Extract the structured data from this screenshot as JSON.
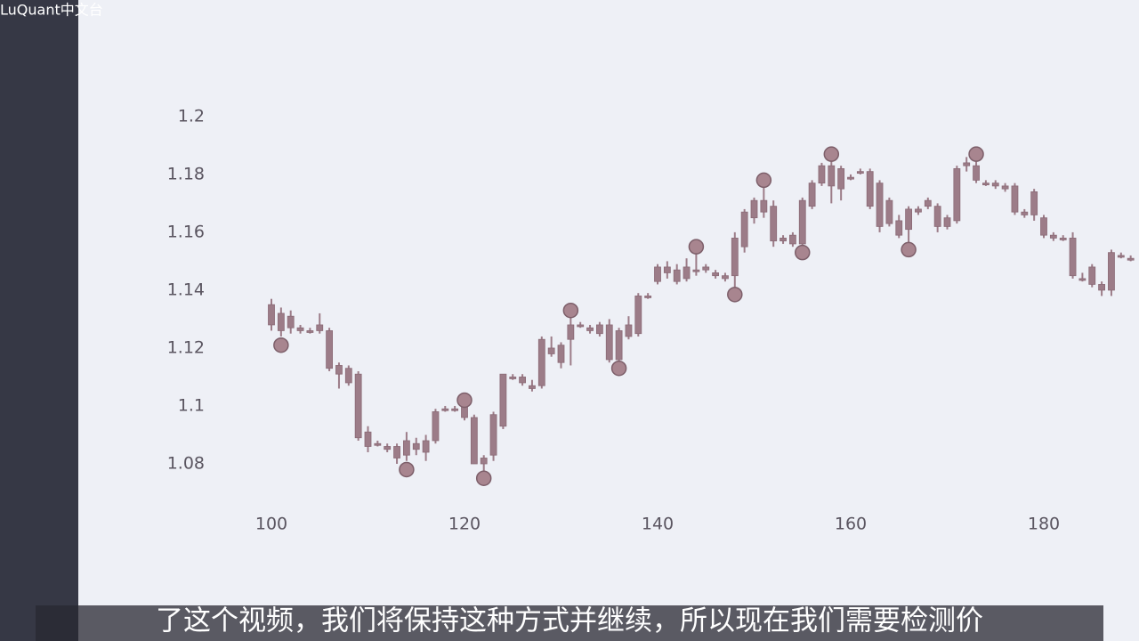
{
  "watermark": "LuQuant中文台",
  "subtitle": "了这个视频，我们将保持这种方式并继续，所以现在我们需要检测价",
  "chart_data": {
    "type": "candlestick",
    "color": "#9c7c88",
    "x": [
      100,
      101,
      102,
      103,
      104,
      105,
      106,
      107,
      108,
      109,
      110,
      111,
      112,
      113,
      114,
      115,
      116,
      117,
      118,
      119,
      120,
      121,
      122,
      123,
      124,
      125,
      126,
      127,
      128,
      129,
      130,
      131,
      132,
      133,
      134,
      135,
      136,
      137,
      138,
      139,
      140,
      141,
      142,
      143,
      144,
      145,
      146,
      147,
      148,
      149,
      150,
      151,
      152,
      153,
      154,
      155,
      156,
      157,
      158,
      159,
      160,
      161,
      162,
      163,
      164,
      165,
      166,
      167,
      168,
      169,
      170,
      171,
      172,
      173,
      174,
      175,
      176,
      177,
      178,
      179,
      180,
      181,
      182,
      183,
      184,
      185,
      186,
      187,
      188,
      189
    ],
    "open": [
      1.128,
      1.132,
      1.131,
      1.126,
      1.126,
      1.128,
      1.126,
      1.114,
      1.113,
      1.111,
      1.091,
      1.087,
      1.086,
      1.086,
      1.083,
      1.085,
      1.084,
      1.088,
      1.099,
      1.099,
      1.1,
      1.096,
      1.08,
      1.083,
      1.093,
      1.11,
      1.11,
      1.107,
      1.107,
      1.12,
      1.115,
      1.128,
      1.128,
      1.127,
      1.125,
      1.128,
      1.116,
      1.124,
      1.125,
      1.138,
      1.143,
      1.146,
      1.143,
      1.144,
      1.147,
      1.147,
      1.146,
      1.145,
      1.145,
      1.155,
      1.165,
      1.171,
      1.169,
      1.158,
      1.159,
      1.156,
      1.169,
      1.177,
      1.183,
      1.182,
      1.179,
      1.181,
      1.181,
      1.177,
      1.171,
      1.164,
      1.168,
      1.168,
      1.169,
      1.169,
      1.162,
      1.164,
      1.184,
      1.183,
      1.177,
      1.177,
      1.176,
      1.176,
      1.167,
      1.174,
      1.165,
      1.158,
      1.158,
      1.158,
      1.144,
      1.148,
      1.142,
      1.14,
      1.152,
      1.151
    ],
    "high": [
      1.137,
      1.134,
      1.133,
      1.128,
      1.127,
      1.132,
      1.127,
      1.115,
      1.114,
      1.112,
      1.093,
      1.088,
      1.087,
      1.087,
      1.091,
      1.089,
      1.09,
      1.099,
      1.1,
      1.1,
      1.102,
      1.097,
      1.083,
      1.098,
      1.111,
      1.111,
      1.111,
      1.109,
      1.124,
      1.124,
      1.122,
      1.133,
      1.129,
      1.128,
      1.129,
      1.13,
      1.127,
      1.131,
      1.139,
      1.139,
      1.149,
      1.15,
      1.149,
      1.151,
      1.155,
      1.149,
      1.147,
      1.146,
      1.16,
      1.168,
      1.172,
      1.178,
      1.171,
      1.159,
      1.16,
      1.172,
      1.178,
      1.184,
      1.187,
      1.183,
      1.18,
      1.182,
      1.182,
      1.178,
      1.172,
      1.166,
      1.169,
      1.169,
      1.172,
      1.17,
      1.166,
      1.183,
      1.186,
      1.187,
      1.178,
      1.178,
      1.177,
      1.177,
      1.168,
      1.175,
      1.166,
      1.16,
      1.159,
      1.16,
      1.146,
      1.149,
      1.143,
      1.154,
      1.153,
      1.152
    ],
    "low": [
      1.126,
      1.124,
      1.125,
      1.125,
      1.125,
      1.125,
      1.112,
      1.106,
      1.107,
      1.088,
      1.084,
      1.086,
      1.084,
      1.08,
      1.081,
      1.083,
      1.081,
      1.087,
      1.098,
      1.098,
      1.095,
      1.08,
      1.075,
      1.081,
      1.092,
      1.109,
      1.107,
      1.105,
      1.106,
      1.117,
      1.113,
      1.114,
      1.127,
      1.125,
      1.124,
      1.115,
      1.113,
      1.123,
      1.124,
      1.137,
      1.142,
      1.144,
      1.142,
      1.143,
      1.145,
      1.146,
      1.144,
      1.143,
      1.139,
      1.153,
      1.163,
      1.165,
      1.155,
      1.156,
      1.155,
      1.153,
      1.168,
      1.176,
      1.17,
      1.171,
      1.178,
      1.18,
      1.168,
      1.16,
      1.162,
      1.158,
      1.154,
      1.166,
      1.168,
      1.16,
      1.161,
      1.163,
      1.181,
      1.177,
      1.176,
      1.175,
      1.174,
      1.166,
      1.165,
      1.164,
      1.158,
      1.157,
      1.157,
      1.144,
      1.143,
      1.141,
      1.138,
      1.138,
      1.151,
      1.15
    ],
    "close": [
      1.135,
      1.126,
      1.127,
      1.127,
      1.126,
      1.126,
      1.113,
      1.111,
      1.108,
      1.089,
      1.086,
      1.087,
      1.085,
      1.082,
      1.088,
      1.087,
      1.088,
      1.098,
      1.099,
      1.099,
      1.096,
      1.08,
      1.082,
      1.097,
      1.111,
      1.11,
      1.108,
      1.106,
      1.123,
      1.118,
      1.121,
      1.123,
      1.128,
      1.126,
      1.128,
      1.116,
      1.126,
      1.128,
      1.138,
      1.138,
      1.148,
      1.148,
      1.147,
      1.148,
      1.147,
      1.148,
      1.145,
      1.144,
      1.158,
      1.167,
      1.171,
      1.167,
      1.157,
      1.157,
      1.156,
      1.171,
      1.177,
      1.183,
      1.176,
      1.175,
      1.179,
      1.181,
      1.169,
      1.162,
      1.163,
      1.159,
      1.161,
      1.167,
      1.171,
      1.162,
      1.165,
      1.182,
      1.183,
      1.178,
      1.177,
      1.176,
      1.175,
      1.167,
      1.166,
      1.166,
      1.159,
      1.159,
      1.158,
      1.145,
      1.144,
      1.142,
      1.14,
      1.153,
      1.152,
      1.151
    ],
    "pivots": {
      "color": "#a8858f",
      "x": [
        101,
        114,
        120,
        122,
        131,
        136,
        144,
        148,
        151,
        155,
        158,
        166,
        173
      ],
      "values": [
        1.121,
        1.078,
        1.102,
        1.075,
        1.133,
        1.113,
        1.155,
        1.1385,
        1.178,
        1.153,
        1.187,
        1.154,
        1.187
      ]
    },
    "xlim": [
      80,
      190
    ],
    "ylim": [
      1.068,
      1.2095
    ],
    "xticks": [
      100,
      120,
      140,
      160,
      180
    ],
    "yticks": [
      1.08,
      1.1,
      1.12,
      1.14,
      1.16,
      1.18,
      1.2
    ]
  }
}
